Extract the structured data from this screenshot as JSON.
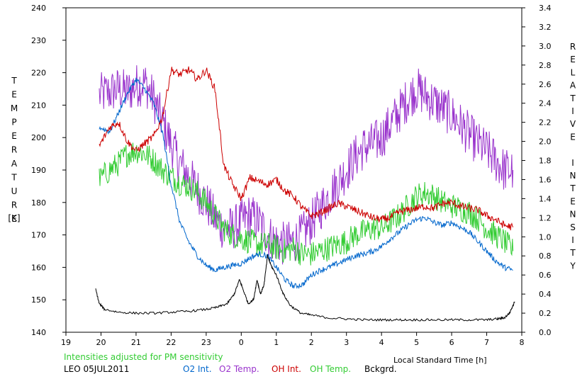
{
  "chart_data": {
    "type": "line",
    "title": "",
    "note": "Intensities adjusted for PM sensitivity",
    "station_date": "LEO 05JUL2011",
    "xlabel": "Local Standard Time [h]",
    "ylabel_left": "TEMPERATURE",
    "ylabel_left_unit": "[K]",
    "ylabel_right": "RELATIVE INTENSITY",
    "x_ticks": [
      "19",
      "20",
      "21",
      "22",
      "23",
      "0",
      "1",
      "2",
      "3",
      "4",
      "5",
      "6",
      "7",
      "8"
    ],
    "x_range": [
      19,
      32
    ],
    "y_left_ticks": [
      "140",
      "150",
      "160",
      "170",
      "180",
      "190",
      "200",
      "210",
      "220",
      "230",
      "240"
    ],
    "y_left_range": [
      140,
      240
    ],
    "y_right_ticks": [
      "0.0",
      "0.2",
      "0.4",
      "0.6",
      "0.8",
      "1.0",
      "1.2",
      "1.4",
      "1.6",
      "1.8",
      "2.0",
      "2.2",
      "2.4",
      "2.6",
      "2.8",
      "3.0",
      "3.2",
      "3.4"
    ],
    "y_right_range": [
      0.0,
      3.4
    ],
    "grid": false,
    "legend_position": "bottom",
    "series": [
      {
        "name": "O2 Int.",
        "axis": "right",
        "color": "#0066cc",
        "x": [
          19.95,
          20.25,
          20.5,
          20.75,
          21.0,
          21.25,
          21.5,
          21.75,
          22.0,
          22.25,
          22.5,
          22.75,
          23.0,
          23.25,
          23.5,
          23.75,
          24.0,
          24.25,
          24.5,
          24.75,
          25.0,
          25.25,
          25.5,
          25.75,
          26.0,
          26.25,
          26.5,
          26.75,
          27.0,
          27.25,
          27.5,
          27.75,
          28.0,
          28.25,
          28.5,
          28.75,
          29.0,
          29.25,
          29.5,
          29.75,
          30.0,
          30.25,
          30.5,
          30.75,
          31.0,
          31.25,
          31.5,
          31.75
        ],
        "y": [
          2.15,
          2.1,
          2.3,
          2.5,
          2.65,
          2.55,
          2.4,
          2.1,
          1.55,
          1.15,
          0.95,
          0.8,
          0.7,
          0.65,
          0.68,
          0.7,
          0.72,
          0.78,
          0.82,
          0.8,
          0.68,
          0.55,
          0.48,
          0.5,
          0.6,
          0.65,
          0.68,
          0.72,
          0.76,
          0.8,
          0.82,
          0.85,
          0.9,
          0.98,
          1.05,
          1.12,
          1.18,
          1.2,
          1.15,
          1.12,
          1.15,
          1.1,
          1.05,
          0.95,
          0.85,
          0.75,
          0.68,
          0.65
        ]
      },
      {
        "name": "O2 Temp.",
        "axis": "left",
        "color": "#9933cc",
        "x": [
          19.95,
          20.25,
          20.5,
          20.75,
          21.0,
          21.25,
          21.5,
          21.75,
          22.0,
          22.25,
          22.5,
          22.75,
          23.0,
          23.25,
          23.5,
          23.75,
          24.0,
          24.25,
          24.5,
          24.75,
          25.0,
          25.25,
          25.5,
          25.75,
          26.0,
          26.25,
          26.5,
          26.75,
          27.0,
          27.25,
          27.5,
          27.75,
          28.0,
          28.25,
          28.5,
          28.75,
          29.0,
          29.25,
          29.5,
          29.75,
          30.0,
          30.25,
          30.5,
          30.75,
          31.0,
          31.25,
          31.5,
          31.75
        ],
        "y": [
          213,
          214,
          215,
          214,
          216,
          217,
          212,
          205,
          198,
          192,
          188,
          184,
          180,
          175,
          172,
          172,
          174,
          176,
          174,
          170,
          168,
          167,
          168,
          170,
          174,
          178,
          182,
          186,
          190,
          194,
          197,
          198,
          200,
          204,
          208,
          212,
          215,
          213,
          211,
          209,
          207,
          204,
          201,
          198,
          196,
          193,
          190,
          190
        ]
      },
      {
        "name": "OH Int.",
        "axis": "right",
        "color": "#cc0000",
        "x": [
          19.95,
          20.25,
          20.5,
          20.75,
          21.0,
          21.25,
          21.5,
          21.75,
          22.0,
          22.25,
          22.5,
          22.75,
          23.0,
          23.25,
          23.5,
          23.75,
          24.0,
          24.25,
          24.5,
          24.75,
          25.0,
          25.25,
          25.5,
          25.75,
          26.0,
          26.25,
          26.5,
          26.75,
          27.0,
          27.25,
          27.5,
          27.75,
          28.0,
          28.25,
          28.5,
          28.75,
          29.0,
          29.25,
          29.5,
          29.75,
          30.0,
          30.25,
          30.5,
          30.75,
          31.0,
          31.25,
          31.5,
          31.75
        ],
        "y": [
          1.95,
          2.15,
          2.2,
          2.0,
          1.9,
          1.98,
          2.05,
          2.25,
          2.75,
          2.7,
          2.75,
          2.65,
          2.75,
          2.55,
          1.75,
          1.55,
          1.4,
          1.62,
          1.58,
          1.55,
          1.6,
          1.48,
          1.42,
          1.3,
          1.22,
          1.25,
          1.3,
          1.35,
          1.32,
          1.28,
          1.24,
          1.2,
          1.18,
          1.2,
          1.26,
          1.28,
          1.3,
          1.32,
          1.3,
          1.35,
          1.36,
          1.32,
          1.3,
          1.28,
          1.22,
          1.18,
          1.12,
          1.1
        ]
      },
      {
        "name": "OH Temp.",
        "axis": "left",
        "color": "#33cc33",
        "x": [
          19.95,
          20.25,
          20.5,
          20.75,
          21.0,
          21.25,
          21.5,
          21.75,
          22.0,
          22.25,
          22.5,
          22.75,
          23.0,
          23.25,
          23.5,
          23.75,
          24.0,
          24.25,
          24.5,
          24.75,
          25.0,
          25.25,
          25.5,
          25.75,
          26.0,
          26.25,
          26.5,
          26.75,
          27.0,
          27.25,
          27.5,
          27.75,
          28.0,
          28.25,
          28.5,
          28.75,
          29.0,
          29.25,
          29.5,
          29.75,
          30.0,
          30.25,
          30.5,
          30.75,
          31.0,
          31.25,
          31.5,
          31.75
        ],
        "y": [
          187,
          190,
          192,
          195,
          196,
          195,
          193,
          190,
          188,
          186,
          185,
          183,
          180,
          176,
          172,
          170,
          169,
          168,
          167,
          167,
          166,
          165,
          166,
          164,
          164,
          165,
          166,
          167,
          168,
          170,
          171,
          172,
          172,
          174,
          176,
          179,
          182,
          183,
          182,
          180,
          179,
          178,
          177,
          175,
          172,
          170,
          168,
          165
        ]
      },
      {
        "name": "Bckgrd.",
        "axis": "right",
        "color": "#000000",
        "x": [
          19.85,
          19.95,
          20.1,
          20.5,
          21.0,
          21.5,
          22.0,
          22.5,
          23.0,
          23.3,
          23.6,
          23.8,
          23.95,
          24.05,
          24.2,
          24.35,
          24.45,
          24.55,
          24.65,
          24.75,
          24.85,
          25.0,
          25.2,
          25.4,
          25.7,
          26.0,
          26.5,
          27.0,
          27.5,
          28.0,
          28.5,
          29.0,
          29.5,
          30.0,
          30.5,
          31.0,
          31.3,
          31.5,
          31.65,
          31.8
        ],
        "y": [
          0.45,
          0.3,
          0.24,
          0.21,
          0.2,
          0.2,
          0.21,
          0.22,
          0.24,
          0.26,
          0.3,
          0.4,
          0.55,
          0.45,
          0.3,
          0.34,
          0.55,
          0.4,
          0.5,
          0.8,
          0.7,
          0.6,
          0.4,
          0.28,
          0.2,
          0.18,
          0.15,
          0.14,
          0.13,
          0.13,
          0.13,
          0.13,
          0.13,
          0.13,
          0.13,
          0.13,
          0.14,
          0.15,
          0.2,
          0.32
        ]
      }
    ]
  }
}
